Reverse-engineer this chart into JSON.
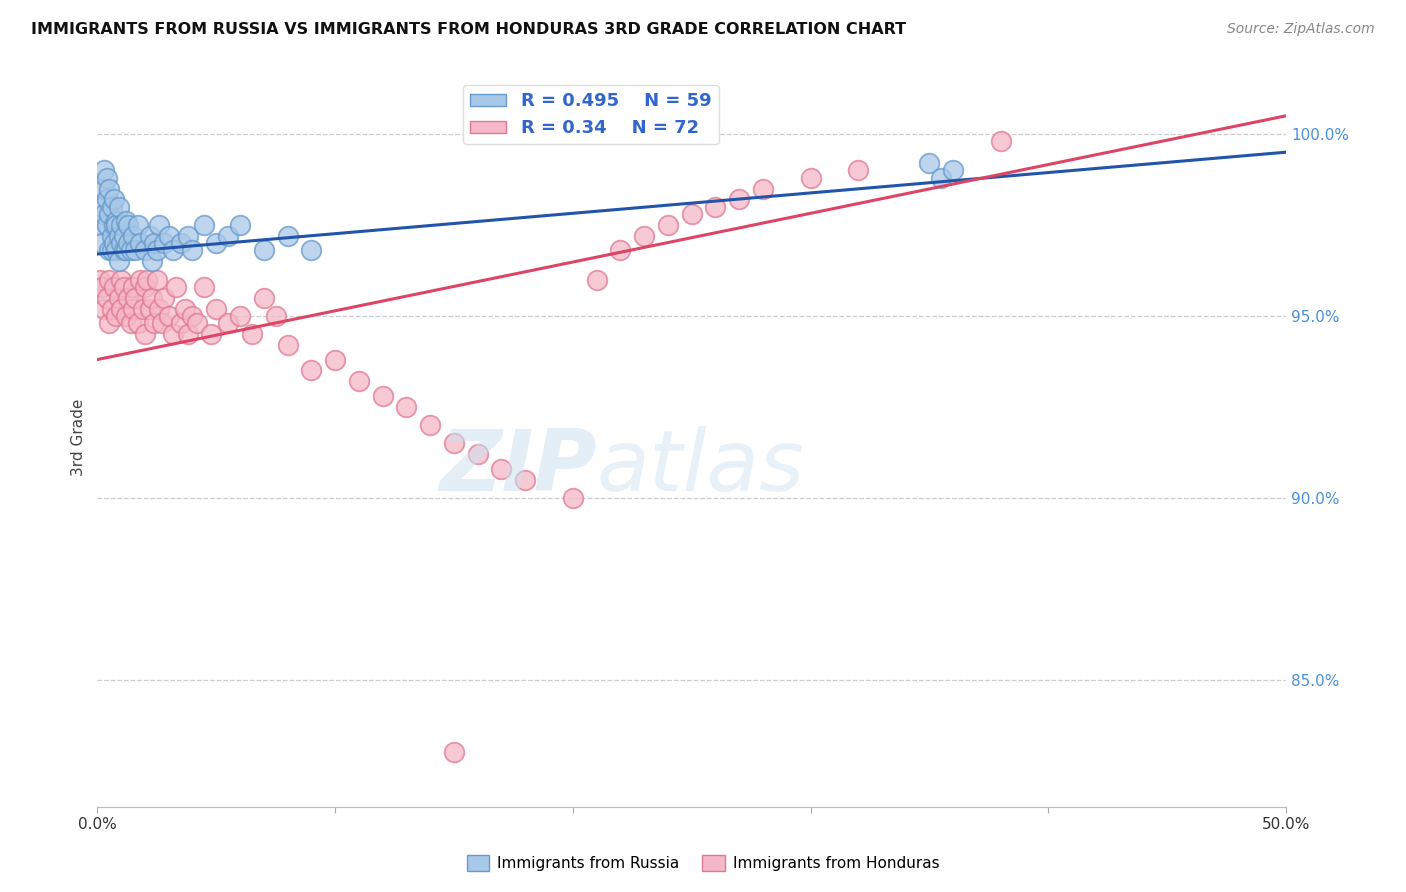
{
  "title": "IMMIGRANTS FROM RUSSIA VS IMMIGRANTS FROM HONDURAS 3RD GRADE CORRELATION CHART",
  "source": "Source: ZipAtlas.com",
  "ylabel": "3rd Grade",
  "x_min": 0.0,
  "x_max": 0.5,
  "y_min": 0.815,
  "y_max": 1.018,
  "y_ticks": [
    0.85,
    0.9,
    0.95,
    1.0
  ],
  "y_tick_labels": [
    "85.0%",
    "90.0%",
    "95.0%",
    "100.0%"
  ],
  "russia_color": "#a8c8e8",
  "russia_edge": "#6699cc",
  "honduras_color": "#f5b8c8",
  "honduras_edge": "#e07890",
  "trendline_russia_color": "#2255aa",
  "trendline_honduras_color": "#dd4466",
  "russia_R": 0.495,
  "russia_N": 59,
  "honduras_R": 0.34,
  "honduras_N": 72,
  "russia_trend": [
    0.967,
    0.995
  ],
  "honduras_trend": [
    0.938,
    1.005
  ],
  "russia_x": [
    0.001,
    0.002,
    0.002,
    0.003,
    0.003,
    0.003,
    0.004,
    0.004,
    0.004,
    0.005,
    0.005,
    0.005,
    0.006,
    0.006,
    0.006,
    0.007,
    0.007,
    0.007,
    0.008,
    0.008,
    0.008,
    0.009,
    0.009,
    0.009,
    0.01,
    0.01,
    0.011,
    0.011,
    0.012,
    0.012,
    0.013,
    0.013,
    0.014,
    0.015,
    0.016,
    0.017,
    0.018,
    0.02,
    0.022,
    0.023,
    0.024,
    0.025,
    0.026,
    0.028,
    0.03,
    0.032,
    0.035,
    0.038,
    0.04,
    0.045,
    0.05,
    0.055,
    0.06,
    0.07,
    0.08,
    0.09,
    0.35,
    0.355,
    0.36
  ],
  "russia_y": [
    0.975,
    0.98,
    0.97,
    0.985,
    0.978,
    0.99,
    0.982,
    0.975,
    0.988,
    0.968,
    0.978,
    0.985,
    0.972,
    0.98,
    0.968,
    0.975,
    0.982,
    0.97,
    0.976,
    0.968,
    0.975,
    0.972,
    0.98,
    0.965,
    0.97,
    0.975,
    0.968,
    0.972,
    0.976,
    0.968,
    0.97,
    0.975,
    0.968,
    0.972,
    0.968,
    0.975,
    0.97,
    0.968,
    0.972,
    0.965,
    0.97,
    0.968,
    0.975,
    0.97,
    0.972,
    0.968,
    0.97,
    0.972,
    0.968,
    0.975,
    0.97,
    0.972,
    0.975,
    0.968,
    0.972,
    0.968,
    0.992,
    0.988,
    0.99
  ],
  "honduras_x": [
    0.001,
    0.002,
    0.003,
    0.004,
    0.005,
    0.005,
    0.006,
    0.007,
    0.008,
    0.009,
    0.01,
    0.01,
    0.011,
    0.012,
    0.013,
    0.014,
    0.015,
    0.015,
    0.016,
    0.017,
    0.018,
    0.019,
    0.02,
    0.02,
    0.021,
    0.022,
    0.023,
    0.024,
    0.025,
    0.026,
    0.027,
    0.028,
    0.03,
    0.032,
    0.033,
    0.035,
    0.037,
    0.038,
    0.04,
    0.042,
    0.045,
    0.048,
    0.05,
    0.055,
    0.06,
    0.065,
    0.07,
    0.075,
    0.08,
    0.09,
    0.1,
    0.11,
    0.12,
    0.13,
    0.14,
    0.15,
    0.16,
    0.17,
    0.18,
    0.2,
    0.21,
    0.22,
    0.23,
    0.24,
    0.25,
    0.26,
    0.27,
    0.28,
    0.3,
    0.32,
    0.38,
    0.15
  ],
  "honduras_y": [
    0.96,
    0.958,
    0.952,
    0.955,
    0.948,
    0.96,
    0.952,
    0.958,
    0.95,
    0.955,
    0.96,
    0.952,
    0.958,
    0.95,
    0.955,
    0.948,
    0.958,
    0.952,
    0.955,
    0.948,
    0.96,
    0.952,
    0.958,
    0.945,
    0.96,
    0.952,
    0.955,
    0.948,
    0.96,
    0.952,
    0.948,
    0.955,
    0.95,
    0.945,
    0.958,
    0.948,
    0.952,
    0.945,
    0.95,
    0.948,
    0.958,
    0.945,
    0.952,
    0.948,
    0.95,
    0.945,
    0.955,
    0.95,
    0.942,
    0.935,
    0.938,
    0.932,
    0.928,
    0.925,
    0.92,
    0.915,
    0.912,
    0.908,
    0.905,
    0.9,
    0.96,
    0.968,
    0.972,
    0.975,
    0.978,
    0.98,
    0.982,
    0.985,
    0.988,
    0.99,
    0.998,
    0.83
  ]
}
